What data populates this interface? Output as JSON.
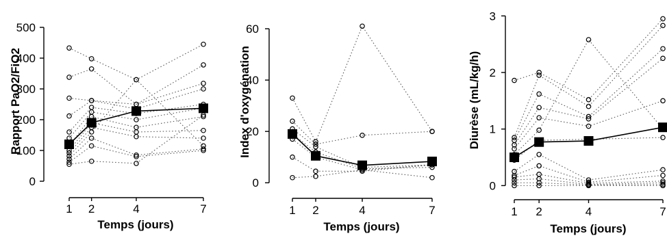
{
  "chart_data": [
    {
      "type": "line",
      "xlabel": "Temps (jours)",
      "ylabel": "Rapport PaO2/FiO2",
      "x": [
        1,
        2,
        4,
        7
      ],
      "xticks": [
        1,
        2,
        4,
        7
      ],
      "yticks": [
        0,
        100,
        200,
        300,
        400,
        500
      ],
      "ylim": [
        0,
        520
      ],
      "mean": [
        120,
        190,
        228,
        237
      ],
      "patients": [
        [
          433,
          398,
          330,
          445
        ],
        [
          338,
          365,
          250,
          378
        ],
        [
          270,
          262,
          250,
          318
        ],
        [
          212,
          262,
          235,
          300
        ],
        [
          160,
          240,
          220,
          250
        ],
        [
          140,
          225,
          200,
          238
        ],
        [
          115,
          210,
          175,
          210
        ],
        [
          100,
          190,
          160,
          165
        ],
        [
          92,
          175,
          145,
          140
        ],
        [
          82,
          160,
          330,
          115
        ],
        [
          72,
          140,
          85,
          105
        ],
        [
          62,
          115,
          80,
          100
        ],
        [
          55,
          65,
          58,
          215
        ]
      ]
    },
    {
      "type": "line",
      "xlabel": "Temps (jours)",
      "ylabel": "Index d'oxygénation",
      "x": [
        1,
        2,
        4,
        7
      ],
      "xticks": [
        1,
        2,
        4,
        7
      ],
      "yticks": [
        0,
        20,
        40,
        60
      ],
      "ylim": [
        -1,
        64
      ],
      "mean": [
        19,
        10.5,
        6.8,
        8.3
      ],
      "patients": [
        [
          33,
          16,
          61,
          20
        ],
        [
          24,
          15,
          18.5,
          20
        ],
        [
          21,
          14,
          6,
          7
        ],
        [
          19,
          12,
          5.5,
          6
        ],
        [
          17,
          10,
          5,
          2
        ],
        [
          10,
          4.5,
          4.5,
          7
        ],
        [
          2,
          2.5,
          5,
          7
        ]
      ]
    },
    {
      "type": "line",
      "xlabel": "Temps (jours)",
      "ylabel": "Diurèse (mL/kg/h)",
      "x": [
        1,
        2,
        4,
        7
      ],
      "xticks": [
        1,
        2,
        4,
        7
      ],
      "yticks": [
        0,
        1,
        2,
        3
      ],
      "ylim": [
        -0.08,
        3.1
      ],
      "mean": [
        0.5,
        0.77,
        0.79,
        1.03
      ],
      "patients": [
        [
          1.86,
          2.0,
          1.52,
          2.95
        ],
        [
          0.85,
          1.95,
          1.4,
          2.83
        ],
        [
          0.8,
          1.62,
          1.22,
          2.42
        ],
        [
          0.72,
          1.38,
          1.18,
          2.25
        ],
        [
          0.65,
          1.2,
          1.05,
          1.5
        ],
        [
          0.55,
          0.98,
          2.58,
          1.0
        ],
        [
          0.45,
          0.8,
          0.82,
          0.85
        ],
        [
          0.25,
          0.55,
          0.1,
          0.28
        ],
        [
          0.18,
          0.35,
          0.06,
          0.18
        ],
        [
          0.15,
          0.2,
          0.04,
          0.08
        ],
        [
          0.1,
          0.12,
          0.02,
          0.05
        ],
        [
          0.05,
          0.05,
          0.01,
          0.02
        ],
        [
          0.0,
          0.0,
          0.0,
          0.0
        ]
      ]
    }
  ]
}
